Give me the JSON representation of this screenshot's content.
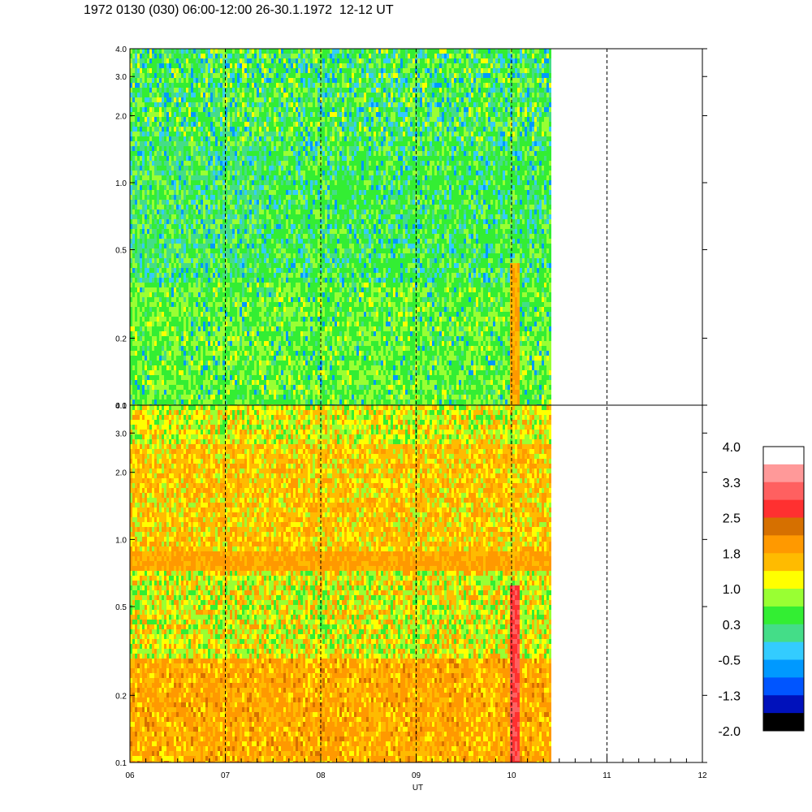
{
  "title": "1972 0130 (030) 06:00-12:00 26-30.1.1972  12-12 UT",
  "chart_data": {
    "type": "heatmap",
    "title": "1972 0130 (030) 06:00-12:00 26-30.1.1972  12-12 UT",
    "xlabel": "UT",
    "x_range": [
      6,
      12
    ],
    "x_tick_labels": [
      "06",
      "07",
      "08",
      "09",
      "10",
      "11",
      "12"
    ],
    "x_ticks": [
      6,
      7,
      8,
      9,
      10,
      11,
      12
    ],
    "data_end_x": 10.4,
    "dashed_vlines_x": [
      7,
      8,
      9,
      10,
      11
    ],
    "y_scale": "log",
    "panels": [
      {
        "name": "upper",
        "ylim": [
          0.1,
          4.0
        ],
        "y_ticks": [
          0.1,
          0.2,
          0.5,
          1.0,
          2.0,
          3.0,
          4.0
        ],
        "y_tick_labels": [
          "0.1",
          "0.2",
          "0.5",
          "1.0",
          "2.0",
          "3.0",
          "4.0"
        ],
        "dominant_levels": "0.3 to 1.0 (green / light blue)"
      },
      {
        "name": "lower",
        "ylim": [
          0.1,
          4.0
        ],
        "y_ticks": [
          0.1,
          0.2,
          0.5,
          1.0,
          2.0,
          3.0,
          4.0
        ],
        "y_tick_labels": [
          "0.1",
          "0.2",
          "0.5",
          "1.0",
          "2.0",
          "3.0",
          "4.0"
        ],
        "dominant_levels": "1.0 to 2.2 (yellow / orange), band near 0.9 across 06-10.4"
      }
    ],
    "colorbar": {
      "labels": [
        "4.0",
        "3.3",
        "2.5",
        "1.8",
        "1.0",
        "0.3",
        "-0.5",
        "-1.3",
        "-2.0"
      ],
      "colors": [
        "#ffffff",
        "#ff9999",
        "#ff6060",
        "#ff3030",
        "#d67000",
        "#ff9900",
        "#ffbb00",
        "#ffff00",
        "#99ff33",
        "#33ee33",
        "#44dd88",
        "#33ccff",
        "#0099ff",
        "#0055ff",
        "#0011bb",
        "#000000"
      ]
    }
  }
}
